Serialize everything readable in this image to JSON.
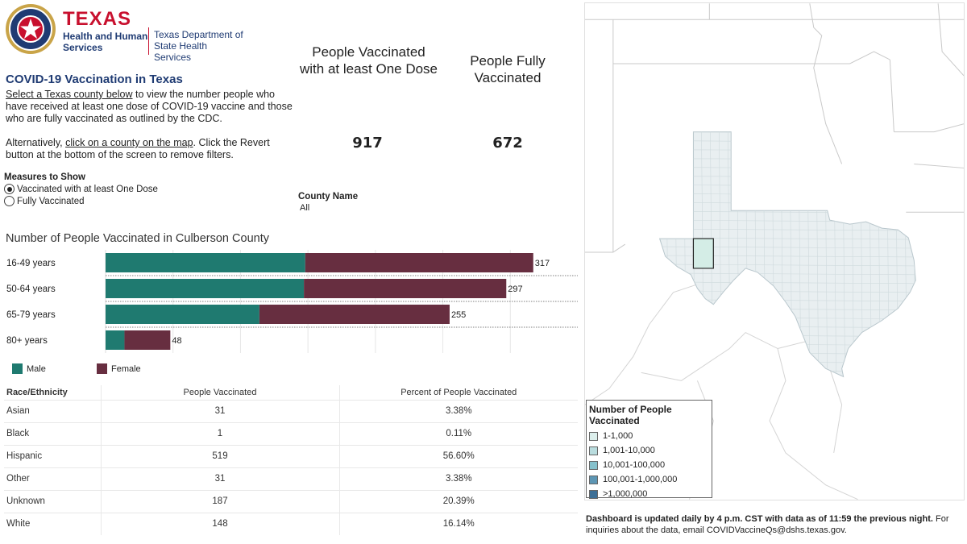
{
  "header": {
    "logo_texas": "TEXAS",
    "logo_sub_line1": "Health and Human",
    "logo_sub_line2": "Services",
    "dshs_line1": "Texas Department of",
    "dshs_line2": "State Health Services"
  },
  "intro": {
    "title": "COVID-19 Vaccination in Texas",
    "p1_link": "Select a Texas county below",
    "p1_rest": " to view the number people who have received at least one dose of COVID-19 vaccine and those who are fully vaccinated as outlined by the CDC.",
    "p2_start": "Alternatively, ",
    "p2_link": "click on a county on the map",
    "p2_rest": ". Click the Revert button at the bottom of the screen to remove filters."
  },
  "measures": {
    "heading": "Measures to Show",
    "options": [
      {
        "label": "Vaccinated with at least One Dose",
        "selected": true
      },
      {
        "label": "Fully Vaccinated",
        "selected": false
      }
    ]
  },
  "kpis": {
    "one_dose_title": "People Vaccinated with at least One Dose",
    "one_dose_value": "917",
    "fully_title": "People Fully Vaccinated",
    "fully_value": "672"
  },
  "county_filter": {
    "label": "County Name",
    "value": "All"
  },
  "chart_data": {
    "type": "bar",
    "orientation": "horizontal",
    "stacked": true,
    "title": "Number of People Vaccinated in Culberson County",
    "categories": [
      "16-49 years",
      "50-64 years",
      "65-79 years",
      "80+ years"
    ],
    "series": [
      {
        "name": "Male",
        "color": "#1f7a70",
        "values": [
          148,
          147,
          114,
          14
        ]
      },
      {
        "name": "Female",
        "color": "#672e40",
        "values": [
          169,
          150,
          141,
          34
        ]
      }
    ],
    "totals": [
      317,
      297,
      255,
      48
    ],
    "xlim": [
      0,
      350
    ],
    "grid": true,
    "legend_position": "bottom-left"
  },
  "race_table": {
    "headers": [
      "Race/Ethnicity",
      "People Vaccinated",
      "Percent of People Vaccinated"
    ],
    "rows": [
      [
        "Asian",
        "31",
        "3.38%"
      ],
      [
        "Black",
        "1",
        "0.11%"
      ],
      [
        "Hispanic",
        "519",
        "56.60%"
      ],
      [
        "Other",
        "31",
        "3.38%"
      ],
      [
        "Unknown",
        "187",
        "20.39%"
      ],
      [
        "White",
        "148",
        "16.14%"
      ]
    ]
  },
  "map_legend": {
    "title": "Number of People Vaccinated",
    "items": [
      {
        "label": "1-1,000",
        "color": "#dcefec"
      },
      {
        "label": "1,001-10,000",
        "color": "#b9dcde"
      },
      {
        "label": "10,001-100,000",
        "color": "#86c1cc"
      },
      {
        "label": "100,001-1,000,000",
        "color": "#5d96b4"
      },
      {
        "label": ">1,000,000",
        "color": "#3d6f96"
      }
    ]
  },
  "footnote": {
    "bold": "Dashboard is updated daily by 4 p.m. CST with data as of 11:59 the previous night.",
    "rest": " For inquiries about the data, email COVIDVaccineQs@dshs.texas.gov."
  }
}
